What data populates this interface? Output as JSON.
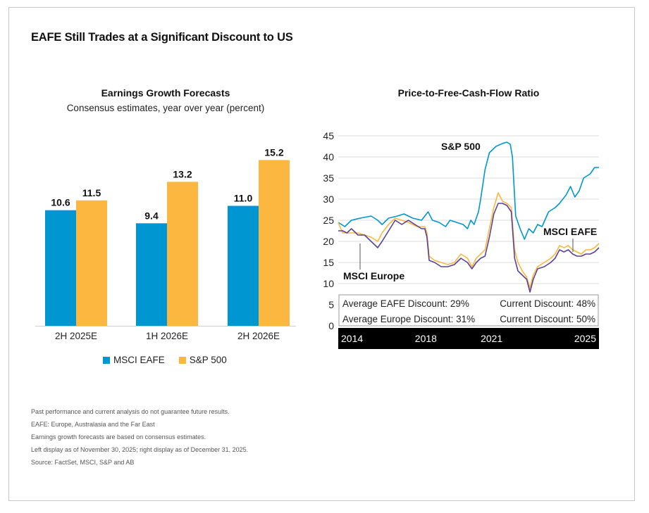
{
  "title": "EAFE Still Trades at a Significant Discount to US",
  "colors": {
    "eafe": "#0096d2",
    "sp500": "#fbb73f",
    "europe": "#5b4296",
    "dark": "#000000"
  },
  "chart_data": [
    {
      "type": "bar",
      "title": "Earnings Growth Forecasts",
      "subtitle": "Consensus estimates, year over year (percent)",
      "categories": [
        "2H 2025E",
        "1H 2026E",
        "2H 2026E"
      ],
      "series": [
        {
          "name": "MSCI EAFE",
          "values": [
            10.6,
            9.4,
            11.0
          ],
          "labels": [
            "10.6",
            "9.4",
            "11.0"
          ]
        },
        {
          "name": "S&P 500",
          "values": [
            11.5,
            13.2,
            15.2
          ],
          "labels": [
            "11.5",
            "13.2",
            "15.2"
          ]
        }
      ],
      "ylim": [
        0,
        18
      ],
      "legend": "bottom"
    },
    {
      "type": "line",
      "title": "Price-to-Free-Cash-Flow Ratio",
      "yticks": [
        "0",
        "5",
        "10",
        "15",
        "20",
        "25",
        "30",
        "35",
        "40",
        "45"
      ],
      "ylim": [
        0,
        45
      ],
      "xlim": [
        2014,
        2025.9
      ],
      "xticks": [
        {
          "value": 2014,
          "label": "2014"
        },
        {
          "value": 2018,
          "label": "2018"
        },
        {
          "value": 2021,
          "label": "2021"
        },
        {
          "value": 2025,
          "label": "2025"
        }
      ],
      "grid": true,
      "series": [
        {
          "name": "S&P 500",
          "label": "S&P 500",
          "points": [
            [
              2014,
              24.5
            ],
            [
              2014.3,
              23.5
            ],
            [
              2014.6,
              25
            ],
            [
              2015,
              25.5
            ],
            [
              2015.5,
              26
            ],
            [
              2015.8,
              25
            ],
            [
              2016,
              24
            ],
            [
              2016.3,
              25.5
            ],
            [
              2016.7,
              26
            ],
            [
              2017,
              26.5
            ],
            [
              2017.4,
              25.5
            ],
            [
              2017.8,
              25
            ],
            [
              2018.1,
              27
            ],
            [
              2018.3,
              25
            ],
            [
              2018.6,
              24.5
            ],
            [
              2018.9,
              23.5
            ],
            [
              2019.1,
              25
            ],
            [
              2019.4,
              24.5
            ],
            [
              2019.7,
              24
            ],
            [
              2019.9,
              23
            ],
            [
              2020.05,
              25
            ],
            [
              2020.2,
              24
            ],
            [
              2020.4,
              27
            ],
            [
              2020.5,
              30
            ],
            [
              2020.7,
              37
            ],
            [
              2020.9,
              41
            ],
            [
              2021.2,
              42.5
            ],
            [
              2021.5,
              43.2
            ],
            [
              2021.7,
              43.5
            ],
            [
              2021.85,
              43
            ],
            [
              2021.95,
              40
            ],
            [
              2022.1,
              26
            ],
            [
              2022.3,
              23
            ],
            [
              2022.5,
              20.5
            ],
            [
              2022.7,
              23
            ],
            [
              2022.9,
              22
            ],
            [
              2023.1,
              24
            ],
            [
              2023.3,
              23.5
            ],
            [
              2023.6,
              27
            ],
            [
              2023.9,
              28
            ],
            [
              2024.1,
              29
            ],
            [
              2024.4,
              31
            ],
            [
              2024.6,
              33
            ],
            [
              2024.8,
              30.5
            ],
            [
              2025.0,
              32
            ],
            [
              2025.2,
              35
            ],
            [
              2025.5,
              36
            ],
            [
              2025.7,
              37.5
            ],
            [
              2025.9,
              37.5
            ]
          ]
        },
        {
          "name": "MSCI EAFE",
          "label": "MSCI EAFE",
          "points": [
            [
              2014,
              24.5
            ],
            [
              2014.2,
              22
            ],
            [
              2014.5,
              22
            ],
            [
              2014.9,
              22
            ],
            [
              2015.2,
              21.5
            ],
            [
              2015.5,
              21
            ],
            [
              2015.8,
              20
            ],
            [
              2016,
              22
            ],
            [
              2016.3,
              24
            ],
            [
              2016.6,
              25.5
            ],
            [
              2016.9,
              25
            ],
            [
              2017.2,
              24.5
            ],
            [
              2017.6,
              23.5
            ],
            [
              2017.95,
              23.5
            ],
            [
              2018.05,
              22
            ],
            [
              2018.15,
              16.5
            ],
            [
              2018.4,
              15.5
            ],
            [
              2018.7,
              15
            ],
            [
              2019,
              14.5
            ],
            [
              2019.3,
              15
            ],
            [
              2019.6,
              17
            ],
            [
              2019.9,
              16
            ],
            [
              2020.1,
              14
            ],
            [
              2020.3,
              16
            ],
            [
              2020.5,
              17
            ],
            [
              2020.7,
              18
            ],
            [
              2020.9,
              23
            ],
            [
              2021.1,
              28
            ],
            [
              2021.3,
              31.5
            ],
            [
              2021.5,
              29.5
            ],
            [
              2021.7,
              29
            ],
            [
              2021.9,
              28
            ],
            [
              2022.05,
              18
            ],
            [
              2022.2,
              15
            ],
            [
              2022.4,
              13
            ],
            [
              2022.6,
              11.5
            ],
            [
              2022.75,
              9
            ],
            [
              2022.9,
              12
            ],
            [
              2023.1,
              14
            ],
            [
              2023.4,
              15
            ],
            [
              2023.7,
              16
            ],
            [
              2023.9,
              17
            ],
            [
              2024.1,
              19
            ],
            [
              2024.3,
              18.5
            ],
            [
              2024.5,
              19
            ],
            [
              2024.7,
              18
            ],
            [
              2024.9,
              17.5
            ],
            [
              2025.1,
              17
            ],
            [
              2025.3,
              18
            ],
            [
              2025.5,
              18
            ],
            [
              2025.7,
              18.5
            ],
            [
              2025.9,
              19.5
            ]
          ]
        },
        {
          "name": "MSCI Europe",
          "label": "MSCI Europe",
          "points": [
            [
              2014,
              22.5
            ],
            [
              2014.2,
              22.5
            ],
            [
              2014.4,
              22
            ],
            [
              2014.6,
              23
            ],
            [
              2014.9,
              21.5
            ],
            [
              2015.2,
              21.5
            ],
            [
              2015.5,
              20
            ],
            [
              2015.8,
              18.5
            ],
            [
              2016,
              20
            ],
            [
              2016.3,
              22.5
            ],
            [
              2016.6,
              25
            ],
            [
              2016.9,
              24
            ],
            [
              2017.2,
              25
            ],
            [
              2017.5,
              24
            ],
            [
              2017.8,
              23
            ],
            [
              2017.95,
              23
            ],
            [
              2018.05,
              21
            ],
            [
              2018.15,
              15.5
            ],
            [
              2018.4,
              15
            ],
            [
              2018.7,
              14
            ],
            [
              2019,
              14
            ],
            [
              2019.3,
              14.5
            ],
            [
              2019.6,
              16
            ],
            [
              2019.9,
              15
            ],
            [
              2020.1,
              13.5
            ],
            [
              2020.3,
              15
            ],
            [
              2020.5,
              16
            ],
            [
              2020.7,
              16.5
            ],
            [
              2020.9,
              21
            ],
            [
              2021.1,
              26.5
            ],
            [
              2021.3,
              29
            ],
            [
              2021.5,
              29
            ],
            [
              2021.7,
              28.5
            ],
            [
              2021.9,
              27
            ],
            [
              2022.05,
              16
            ],
            [
              2022.2,
              13
            ],
            [
              2022.4,
              12
            ],
            [
              2022.6,
              11
            ],
            [
              2022.75,
              8
            ],
            [
              2022.9,
              11
            ],
            [
              2023.1,
              13.5
            ],
            [
              2023.4,
              14
            ],
            [
              2023.7,
              15
            ],
            [
              2023.9,
              16
            ],
            [
              2024.1,
              18
            ],
            [
              2024.3,
              17.5
            ],
            [
              2024.5,
              18
            ],
            [
              2024.7,
              17
            ],
            [
              2024.9,
              16.5
            ],
            [
              2025.1,
              16.5
            ],
            [
              2025.3,
              17
            ],
            [
              2025.5,
              17
            ],
            [
              2025.7,
              17.5
            ],
            [
              2025.9,
              18.5
            ]
          ]
        }
      ],
      "annotations": [
        {
          "row": 1,
          "left": "Average EAFE Discount: 29%",
          "right": "Current Discount: 48%"
        },
        {
          "row": 2,
          "left": "Average Europe Discount: 31%",
          "right": "Current Discount: 50%"
        }
      ]
    }
  ],
  "notes": [
    "Past performance and current analysis do not guarantee future results.",
    "EAFE: Europe, Australasia and the Far East",
    "Earnings growth forecasts are based on consensus estimates.",
    "Left display as of November 30, 2025; right display as of December 31, 2025.",
    "Source: FactSet, MSCI, S&P and AB"
  ]
}
